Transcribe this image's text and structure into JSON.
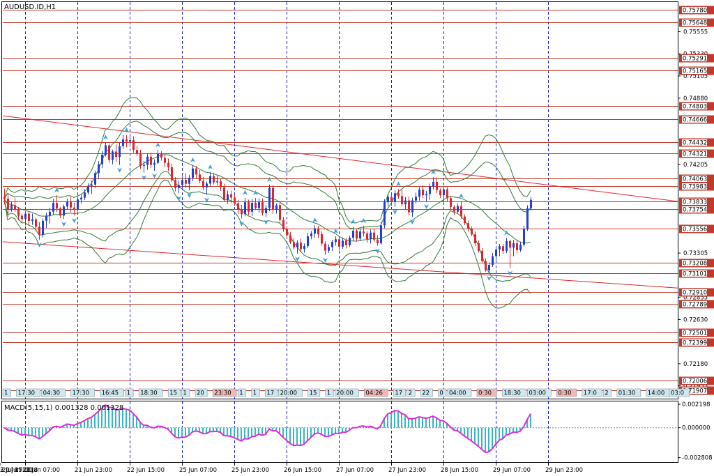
{
  "chart_data": {
    "type": "candlestick",
    "symbol_label": "AUDUSD.ID,H1",
    "colors": {
      "bull": "#1f3fd6",
      "bear": "#e0242b",
      "level_line": "#c0392b",
      "trend_line": "#e0242b",
      "bollinger": "#2f7a36",
      "fractal": "#3aa0dc",
      "grid_vertical": "#1a1ac8",
      "macd_hist": "#36b6c8",
      "macd_signal": "#e02ad8",
      "price_tag_bg": "#c0392b",
      "time_tag_bg": "#cfe7ef"
    },
    "main_axis": {
      "ylim": [
        0.71825,
        0.75856
      ],
      "tick_labels": [
        "0.75555",
        "0.75330",
        "0.75105",
        "0.74880",
        "0.74205",
        "0.73305",
        "0.72855",
        "0.72630",
        "0.72180",
        "0.71955"
      ]
    },
    "levels": [
      "0.75780",
      "0.75648",
      "0.75291",
      "0.75165",
      "0.74803",
      "0.74666",
      "0.74432",
      "0.74321",
      "0.74063",
      "0.73983",
      "0.73833",
      "0.73754",
      "0.73556",
      "0.73208",
      "0.73101",
      "0.72910",
      "0.72789",
      "0.72501",
      "0.72399",
      "0.72006",
      "0.71907"
    ],
    "trend_lines": [
      {
        "from_bar": 0,
        "from_price": 0.747,
        "to_bar": 159,
        "to_price": 0.7383
      },
      {
        "from_bar": 0,
        "from_price": 0.7342,
        "to_bar": 159,
        "to_price": 0.7295
      }
    ],
    "x_tick_labels": [
      "20 Jun 2018",
      "21 Jun 07:00",
      "21 Jun 23:00",
      "22 Jun 15:00",
      "25 Jun 07:00",
      "25 Jun 23:00",
      "26 Jun 15:00",
      "27 Jun 07:00",
      "27 Jun 23:00",
      "28 Jun 15:00",
      "29 Jun 07:00",
      "29 Jun 23:00",
      "2 Jul 15:00",
      "3 Jul 07:00"
    ],
    "vertical_grid_bars": [
      6,
      21,
      36,
      51,
      66,
      81,
      96,
      111,
      126,
      141,
      156
    ],
    "time_tags": [
      "1",
      "17:30",
      "04:30",
      "17:30",
      "16:45",
      "1",
      "18:30",
      "15",
      "1",
      "20",
      "23:30",
      "1",
      "1",
      "17",
      "20:00",
      "15",
      "1",
      "20:00",
      "04:26",
      "17",
      "2",
      "22",
      "0",
      "04:00",
      "0:30",
      "18:30",
      "03:00",
      "0:30",
      "17:0",
      "2",
      "01:30",
      "14:00",
      "03:0"
    ],
    "ohlc": [
      [
        0.7388,
        0.73961,
        0.73799,
        0.73858
      ],
      [
        0.73858,
        0.73901,
        0.73676,
        0.73749
      ],
      [
        0.73749,
        0.73826,
        0.73726,
        0.73792
      ],
      [
        0.73792,
        0.73868,
        0.73725,
        0.73752
      ],
      [
        0.73752,
        0.73773,
        0.73638,
        0.73684
      ],
      [
        0.73684,
        0.73703,
        0.73606,
        0.73651
      ],
      [
        0.73651,
        0.7373,
        0.73585,
        0.73705
      ],
      [
        0.73705,
        0.73725,
        0.7358,
        0.73632
      ],
      [
        0.73632,
        0.73706,
        0.73592,
        0.73648
      ],
      [
        0.73648,
        0.73666,
        0.73526,
        0.73573
      ],
      [
        0.73573,
        0.7362,
        0.7344,
        0.7349
      ],
      [
        0.7349,
        0.73654,
        0.73463,
        0.73633
      ],
      [
        0.73633,
        0.73714,
        0.7356,
        0.73685
      ],
      [
        0.73685,
        0.73765,
        0.73606,
        0.73725
      ],
      [
        0.73725,
        0.73856,
        0.73695,
        0.73815
      ],
      [
        0.73815,
        0.73893,
        0.73722,
        0.73758
      ],
      [
        0.73758,
        0.73775,
        0.73659,
        0.73686
      ],
      [
        0.73686,
        0.73799,
        0.73651,
        0.73779
      ],
      [
        0.73779,
        0.7386,
        0.73747,
        0.7383
      ],
      [
        0.7383,
        0.73876,
        0.73723,
        0.73768
      ],
      [
        0.73768,
        0.73817,
        0.73687,
        0.73747
      ],
      [
        0.73747,
        0.7388,
        0.73726,
        0.7385
      ],
      [
        0.7385,
        0.73906,
        0.7381,
        0.73868
      ],
      [
        0.73868,
        0.73954,
        0.73843,
        0.7392
      ],
      [
        0.7392,
        0.74014,
        0.739,
        0.73988
      ],
      [
        0.73988,
        0.74043,
        0.73904,
        0.74001
      ],
      [
        0.74001,
        0.74143,
        0.73965,
        0.74118
      ],
      [
        0.74118,
        0.7424,
        0.74061,
        0.74208
      ],
      [
        0.74208,
        0.74342,
        0.74171,
        0.74304
      ],
      [
        0.74304,
        0.7443,
        0.74287,
        0.744
      ],
      [
        0.744,
        0.74416,
        0.74221,
        0.74253
      ],
      [
        0.74253,
        0.74356,
        0.74206,
        0.74337
      ],
      [
        0.74337,
        0.74409,
        0.74236,
        0.74282
      ],
      [
        0.74282,
        0.74429,
        0.742,
        0.74392
      ],
      [
        0.74392,
        0.74503,
        0.74367,
        0.74461
      ],
      [
        0.74461,
        0.74504,
        0.74381,
        0.74437
      ],
      [
        0.74437,
        0.74484,
        0.74384,
        0.74454
      ],
      [
        0.74454,
        0.74491,
        0.74324,
        0.74354
      ],
      [
        0.74354,
        0.74394,
        0.74293,
        0.74312
      ],
      [
        0.74312,
        0.74355,
        0.74161,
        0.74191
      ],
      [
        0.74191,
        0.74241,
        0.74123,
        0.742
      ],
      [
        0.742,
        0.74314,
        0.7415,
        0.74285
      ],
      [
        0.74285,
        0.74325,
        0.74167,
        0.74202
      ],
      [
        0.74202,
        0.74257,
        0.74142,
        0.74222
      ],
      [
        0.74222,
        0.74352,
        0.74208,
        0.74315
      ],
      [
        0.74315,
        0.74341,
        0.74244,
        0.74273
      ],
      [
        0.74273,
        0.74303,
        0.74176,
        0.74222
      ],
      [
        0.74222,
        0.74265,
        0.74137,
        0.74177
      ],
      [
        0.74177,
        0.74215,
        0.74025,
        0.74045
      ],
      [
        0.74045,
        0.74077,
        0.73932,
        0.73965
      ],
      [
        0.73965,
        0.74041,
        0.73913,
        0.73996
      ],
      [
        0.73996,
        0.74084,
        0.73957,
        0.74049
      ],
      [
        0.74049,
        0.74116,
        0.7397,
        0.74009
      ],
      [
        0.74009,
        0.74101,
        0.73942,
        0.7407
      ],
      [
        0.7407,
        0.74199,
        0.74035,
        0.74165
      ],
      [
        0.74165,
        0.74192,
        0.7406,
        0.74104
      ],
      [
        0.74104,
        0.74149,
        0.74014,
        0.74037
      ],
      [
        0.74037,
        0.7408,
        0.73945,
        0.73972
      ],
      [
        0.73972,
        0.74033,
        0.73896,
        0.74011
      ],
      [
        0.74011,
        0.74127,
        0.73987,
        0.74088
      ],
      [
        0.74088,
        0.7412,
        0.74002,
        0.74024
      ],
      [
        0.74024,
        0.74091,
        0.73993,
        0.74034
      ],
      [
        0.74034,
        0.74061,
        0.73937,
        0.73974
      ],
      [
        0.73974,
        0.74007,
        0.73826,
        0.73844
      ],
      [
        0.73844,
        0.7394,
        0.73807,
        0.73902
      ],
      [
        0.73902,
        0.73941,
        0.73812,
        0.73869
      ],
      [
        0.73869,
        0.73901,
        0.73786,
        0.73811
      ],
      [
        0.73811,
        0.73842,
        0.737,
        0.73747
      ],
      [
        0.73747,
        0.73795,
        0.73655,
        0.737
      ],
      [
        0.737,
        0.73868,
        0.7368,
        0.73822
      ],
      [
        0.73822,
        0.73847,
        0.7369,
        0.73725
      ],
      [
        0.73725,
        0.73856,
        0.7368,
        0.73815
      ],
      [
        0.73815,
        0.73864,
        0.73744,
        0.73763
      ],
      [
        0.73763,
        0.73862,
        0.73717,
        0.73822
      ],
      [
        0.73822,
        0.7386,
        0.73686,
        0.73709
      ],
      [
        0.73709,
        0.73793,
        0.73671,
        0.73762
      ],
      [
        0.73762,
        0.74001,
        0.7373,
        0.73968
      ],
      [
        0.73968,
        0.73996,
        0.73702,
        0.73744
      ],
      [
        0.73744,
        0.73809,
        0.73706,
        0.73791
      ],
      [
        0.73791,
        0.73838,
        0.73614,
        0.73642
      ],
      [
        0.73642,
        0.73673,
        0.73521,
        0.73554
      ],
      [
        0.73554,
        0.73578,
        0.73452,
        0.73486
      ],
      [
        0.73486,
        0.73521,
        0.73398,
        0.73415
      ],
      [
        0.73415,
        0.73459,
        0.73338,
        0.73362
      ],
      [
        0.73362,
        0.73434,
        0.73298,
        0.7341
      ],
      [
        0.7341,
        0.73449,
        0.73321,
        0.73346
      ],
      [
        0.73346,
        0.73402,
        0.73309,
        0.73376
      ],
      [
        0.73376,
        0.73512,
        0.73356,
        0.73475
      ],
      [
        0.73475,
        0.73528,
        0.73445,
        0.73503
      ],
      [
        0.73503,
        0.73588,
        0.73459,
        0.73556
      ],
      [
        0.73556,
        0.73583,
        0.73456,
        0.73496
      ],
      [
        0.73496,
        0.73526,
        0.73378,
        0.73401
      ],
      [
        0.73401,
        0.73424,
        0.73284,
        0.73329
      ],
      [
        0.73329,
        0.73394,
        0.73306,
        0.73365
      ],
      [
        0.73365,
        0.7344,
        0.73326,
        0.73418
      ],
      [
        0.73418,
        0.73475,
        0.73381,
        0.73445
      ],
      [
        0.73445,
        0.73472,
        0.7333,
        0.7337
      ],
      [
        0.7337,
        0.73462,
        0.73347,
        0.73431
      ],
      [
        0.73431,
        0.73457,
        0.73351,
        0.73384
      ],
      [
        0.73384,
        0.73483,
        0.73366,
        0.7346
      ],
      [
        0.7346,
        0.73572,
        0.73427,
        0.73532
      ],
      [
        0.73532,
        0.7355,
        0.73421,
        0.73452
      ],
      [
        0.73452,
        0.73556,
        0.73427,
        0.73524
      ],
      [
        0.73524,
        0.73581,
        0.73473,
        0.73504
      ],
      [
        0.73504,
        0.73527,
        0.73411,
        0.73446
      ],
      [
        0.73446,
        0.73544,
        0.73402,
        0.73513
      ],
      [
        0.73513,
        0.73549,
        0.73416,
        0.7344
      ],
      [
        0.7344,
        0.73487,
        0.73378,
        0.73405
      ],
      [
        0.73405,
        0.73617,
        0.73387,
        0.73586
      ],
      [
        0.73586,
        0.73852,
        0.73558,
        0.73822
      ],
      [
        0.73822,
        0.739,
        0.73779,
        0.73874
      ],
      [
        0.73874,
        0.73917,
        0.73784,
        0.73827
      ],
      [
        0.73827,
        0.73945,
        0.73776,
        0.73913
      ],
      [
        0.73913,
        0.73955,
        0.73858,
        0.73883
      ],
      [
        0.73883,
        0.7395,
        0.7378,
        0.73801
      ],
      [
        0.73801,
        0.73873,
        0.73753,
        0.7384
      ],
      [
        0.7384,
        0.73877,
        0.73689,
        0.73719
      ],
      [
        0.73719,
        0.73868,
        0.73672,
        0.73839
      ],
      [
        0.73839,
        0.73919,
        0.73812,
        0.73878
      ],
      [
        0.73878,
        0.73973,
        0.73838,
        0.7395
      ],
      [
        0.7395,
        0.73998,
        0.73861,
        0.73893
      ],
      [
        0.73893,
        0.73937,
        0.73829,
        0.73906
      ],
      [
        0.73906,
        0.74012,
        0.73847,
        0.73984
      ],
      [
        0.73984,
        0.74076,
        0.7395,
        0.74029
      ],
      [
        0.74029,
        0.74072,
        0.73913,
        0.73944
      ],
      [
        0.73944,
        0.73961,
        0.73863,
        0.73893
      ],
      [
        0.73893,
        0.73978,
        0.73825,
        0.73952
      ],
      [
        0.73952,
        0.73974,
        0.73832,
        0.73864
      ],
      [
        0.73864,
        0.73886,
        0.73743,
        0.73775
      ],
      [
        0.73775,
        0.73792,
        0.73694,
        0.73726
      ],
      [
        0.73726,
        0.7381,
        0.7371,
        0.73782
      ],
      [
        0.73782,
        0.73834,
        0.73652,
        0.73677
      ],
      [
        0.73677,
        0.73698,
        0.73588,
        0.73609
      ],
      [
        0.73609,
        0.73634,
        0.73524,
        0.73556
      ],
      [
        0.73556,
        0.73574,
        0.73476,
        0.73495
      ],
      [
        0.73495,
        0.73524,
        0.73376,
        0.73404
      ],
      [
        0.73404,
        0.73431,
        0.73309,
        0.73328
      ],
      [
        0.73328,
        0.73356,
        0.73201,
        0.73224
      ],
      [
        0.73224,
        0.7325,
        0.73115,
        0.7313
      ],
      [
        0.7313,
        0.73209,
        0.73099,
        0.73185
      ],
      [
        0.73185,
        0.73305,
        0.73164,
        0.73273
      ],
      [
        0.73273,
        0.73374,
        0.73231,
        0.73341
      ],
      [
        0.73341,
        0.73397,
        0.73273,
        0.73375
      ],
      [
        0.73375,
        0.73398,
        0.73294,
        0.73326
      ],
      [
        0.73326,
        0.73458,
        0.73303,
        0.73427
      ],
      [
        0.73427,
        0.7344,
        0.73152,
        0.7336
      ],
      [
        0.7336,
        0.73438,
        0.73273,
        0.73406
      ],
      [
        0.73406,
        0.73438,
        0.73302,
        0.73334
      ],
      [
        0.73334,
        0.73421,
        0.73317,
        0.7339
      ],
      [
        0.7339,
        0.73582,
        0.73373,
        0.73552
      ],
      [
        0.73552,
        0.73791,
        0.7353,
        0.7376
      ],
      [
        0.7376,
        0.73874,
        0.73733,
        0.73846
      ]
    ],
    "macd_label": "MACD(5,15,1) 0.001328 0.001328",
    "macd_axis": {
      "ylim": [
        -0.003224,
        0.002464
      ],
      "tick_labels": [
        "0.002198",
        "0.000000",
        "-0.002808"
      ]
    }
  }
}
